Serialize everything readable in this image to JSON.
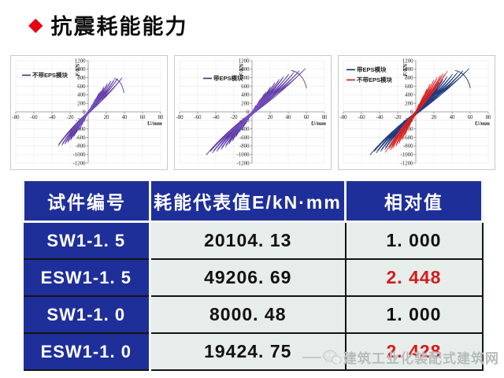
{
  "title": {
    "bullet": "◆",
    "text": "抗震耗能能力"
  },
  "colors": {
    "accent_red": "#e60012",
    "header_blue": "#1f2f99",
    "cell_bg": "#e7edea",
    "value_red": "#d41c1c",
    "grid_gray": "#e3e3e3",
    "curve_purple": "#53309a",
    "curve_navy": "#16306e",
    "curve_red": "#cc1a1a",
    "watermark_gray": "#b4bcbc"
  },
  "chart_data": [
    {
      "id": "chart-without-eps",
      "type": "line",
      "title": "",
      "xlabel": "U/mm",
      "ylabel": "F/kN",
      "xlim": [
        -80,
        80
      ],
      "ylim": [
        -1200,
        1200
      ],
      "x_tick_step": 20,
      "y_tick_step": 200,
      "grid": true,
      "legend_pos": {
        "x": 14,
        "y": 27
      },
      "legend": [
        {
          "label": "不带EPS模块",
          "color": "#42307a"
        }
      ],
      "series": [
        {
          "name": "不带EPS模块",
          "colors": [
            "#53309a",
            "#7a52c4",
            "#643fae"
          ],
          "amplitudes_mm": [
            5,
            9,
            13,
            17,
            21,
            25,
            29,
            33,
            38
          ],
          "peaks_kN": [
            170,
            330,
            470,
            580,
            660,
            720,
            760,
            790,
            810
          ],
          "neg_scale": 0.9,
          "tail": true
        }
      ]
    },
    {
      "id": "chart-with-eps",
      "type": "line",
      "title": "",
      "xlabel": "U/mm",
      "ylabel": "F/kN",
      "xlim": [
        -80,
        80
      ],
      "ylim": [
        -1200,
        1200
      ],
      "x_tick_step": 20,
      "y_tick_step": 200,
      "grid": true,
      "legend_pos": {
        "x": 36,
        "y": 31
      },
      "legend": [
        {
          "label": "带EPS模块",
          "color": "#42307a"
        }
      ],
      "series": [
        {
          "name": "带EPS模块",
          "colors": [
            "#53309a",
            "#7a52c4",
            "#643fae"
          ],
          "amplitudes_mm": [
            5,
            10,
            15,
            20,
            25,
            30,
            35,
            41,
            47,
            53,
            58
          ],
          "peaks_kN": [
            160,
            320,
            460,
            580,
            680,
            760,
            830,
            890,
            940,
            975,
            1000
          ],
          "neg_scale": 0.85,
          "tail": true
        }
      ]
    },
    {
      "id": "chart-comparison",
      "type": "line",
      "title": "",
      "xlabel": "U/mm",
      "ylabel": "F/kN",
      "xlim": [
        -80,
        80
      ],
      "ylim": [
        -1200,
        1200
      ],
      "x_tick_step": 20,
      "y_tick_step": 200,
      "grid": true,
      "legend_pos": {
        "x": 10,
        "y": 20
      },
      "legend": [
        {
          "label": "带EPS模块",
          "color": "#16306e"
        },
        {
          "label": "不带EPS模块",
          "color": "#cc1a1a"
        }
      ],
      "series": [
        {
          "name": "带EPS模块",
          "colors": [
            "#16306e",
            "#253b8c"
          ],
          "amplitudes_mm": [
            5,
            10,
            15,
            20,
            25,
            30,
            35,
            41,
            47,
            53,
            58
          ],
          "peaks_kN": [
            160,
            320,
            460,
            580,
            680,
            760,
            830,
            890,
            940,
            975,
            1000
          ],
          "neg_scale": 0.85,
          "tail": true
        },
        {
          "name": "不带EPS模块",
          "colors": [
            "#cc1a1a",
            "#e23333"
          ],
          "amplitudes_mm": [
            4,
            8,
            12,
            16,
            20,
            24,
            28,
            31,
            34
          ],
          "peaks_kN": [
            200,
            380,
            540,
            660,
            750,
            820,
            870,
            910,
            940
          ],
          "neg_scale": 0.95,
          "tail": false
        }
      ]
    }
  ],
  "table": {
    "header": [
      "试件编号",
      "耗能代表值E/kN·mm",
      "相对值"
    ],
    "rows": [
      {
        "id": "SW1-1. 5",
        "energy": "20104. 13",
        "relative": "1. 000",
        "highlight": false
      },
      {
        "id": "ESW1-1. 5",
        "energy": "49206. 69",
        "relative": "2. 448",
        "highlight": true
      },
      {
        "id": "SW1-1. 0",
        "energy": "8000. 48",
        "relative": "1. 000",
        "highlight": false
      },
      {
        "id": "ESW1-1. 0",
        "energy": "19424. 75",
        "relative": "2. 428",
        "highlight": true
      }
    ]
  },
  "watermark": {
    "icon": "wechat-icon",
    "text": "建筑工业化装配式建筑网"
  }
}
